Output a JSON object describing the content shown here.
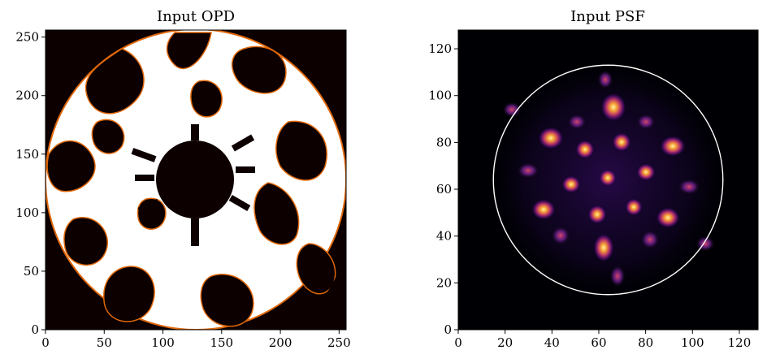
{
  "chart_data": [
    {
      "type": "heatmap",
      "title": "Input OPD",
      "colormap": "afmhot",
      "xlim": [
        0,
        256
      ],
      "ylim": [
        0,
        256
      ],
      "xticks": [
        0,
        50,
        100,
        150,
        200,
        250
      ],
      "yticks": [
        0,
        50,
        100,
        150,
        200,
        250
      ],
      "grid": false
    },
    {
      "type": "heatmap",
      "title": "Input PSF",
      "colormap": "inferno",
      "xlim": [
        0,
        128
      ],
      "ylim": [
        0,
        128
      ],
      "xticks": [
        0,
        20,
        40,
        60,
        80,
        100,
        120
      ],
      "yticks": [
        0,
        20,
        40,
        60,
        80,
        100,
        120
      ],
      "grid": false,
      "circle": {
        "center": [
          64,
          64
        ],
        "radius": 49,
        "color": "#ffffff"
      }
    }
  ]
}
